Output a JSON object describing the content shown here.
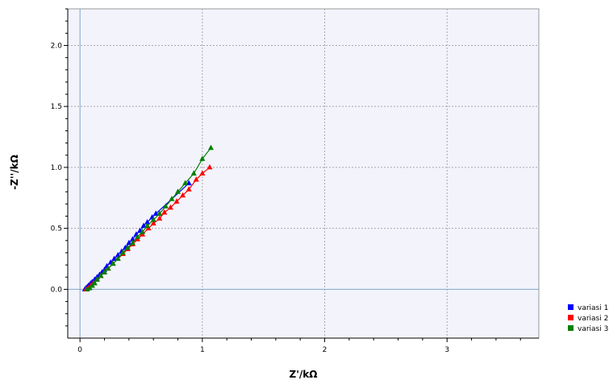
{
  "chart_data": {
    "type": "scatter",
    "title": "",
    "xlabel": "Z'/kΩ",
    "ylabel": "-Z''/kΩ",
    "xlim": [
      -0.1,
      3.75
    ],
    "ylim": [
      -0.4,
      2.3
    ],
    "x_ticks": [
      "0",
      "1",
      "2",
      "3"
    ],
    "x_tick_values": [
      0,
      1,
      2,
      3
    ],
    "y_ticks": [
      "0.0",
      "0.5",
      "1.0",
      "1.5",
      "2.0"
    ],
    "y_tick_values": [
      0.0,
      0.5,
      1.0,
      1.5,
      2.0
    ],
    "grid": true,
    "legend_position": "bottom-right",
    "series": [
      {
        "name": "variasi 1",
        "color": "#0000ff",
        "points": [
          [
            0.04,
            0.0
          ],
          [
            0.05,
            0.01
          ],
          [
            0.06,
            0.02
          ],
          [
            0.07,
            0.03
          ],
          [
            0.08,
            0.04
          ],
          [
            0.09,
            0.05
          ],
          [
            0.1,
            0.06
          ],
          [
            0.12,
            0.08
          ],
          [
            0.14,
            0.1
          ],
          [
            0.16,
            0.12
          ],
          [
            0.18,
            0.14
          ],
          [
            0.2,
            0.16
          ],
          [
            0.22,
            0.19
          ],
          [
            0.25,
            0.22
          ],
          [
            0.28,
            0.25
          ],
          [
            0.31,
            0.28
          ],
          [
            0.34,
            0.31
          ],
          [
            0.37,
            0.34
          ],
          [
            0.4,
            0.38
          ],
          [
            0.43,
            0.41
          ],
          [
            0.46,
            0.45
          ],
          [
            0.49,
            0.48
          ],
          [
            0.52,
            0.52
          ],
          [
            0.55,
            0.55
          ],
          [
            0.59,
            0.59
          ],
          [
            0.62,
            0.62
          ],
          [
            0.89,
            0.87
          ]
        ]
      },
      {
        "name": "variasi 2",
        "color": "#ff0000",
        "points": [
          [
            0.05,
            0.0
          ],
          [
            0.07,
            0.01
          ],
          [
            0.09,
            0.03
          ],
          [
            0.11,
            0.05
          ],
          [
            0.14,
            0.08
          ],
          [
            0.17,
            0.11
          ],
          [
            0.2,
            0.14
          ],
          [
            0.23,
            0.17
          ],
          [
            0.27,
            0.21
          ],
          [
            0.31,
            0.25
          ],
          [
            0.35,
            0.29
          ],
          [
            0.39,
            0.33
          ],
          [
            0.43,
            0.37
          ],
          [
            0.47,
            0.41
          ],
          [
            0.51,
            0.45
          ],
          [
            0.56,
            0.5
          ],
          [
            0.6,
            0.54
          ],
          [
            0.65,
            0.58
          ],
          [
            0.69,
            0.63
          ],
          [
            0.74,
            0.67
          ],
          [
            0.79,
            0.72
          ],
          [
            0.84,
            0.77
          ],
          [
            0.89,
            0.82
          ],
          [
            0.95,
            0.9
          ],
          [
            1.0,
            0.95
          ],
          [
            1.06,
            1.0
          ]
        ]
      },
      {
        "name": "variasi 3",
        "color": "#008000",
        "points": [
          [
            0.06,
            0.0
          ],
          [
            0.08,
            0.01
          ],
          [
            0.1,
            0.03
          ],
          [
            0.12,
            0.05
          ],
          [
            0.14,
            0.08
          ],
          [
            0.17,
            0.11
          ],
          [
            0.2,
            0.14
          ],
          [
            0.23,
            0.17
          ],
          [
            0.27,
            0.21
          ],
          [
            0.31,
            0.25
          ],
          [
            0.35,
            0.3
          ],
          [
            0.39,
            0.34
          ],
          [
            0.43,
            0.38
          ],
          [
            0.47,
            0.43
          ],
          [
            0.51,
            0.47
          ],
          [
            0.55,
            0.52
          ],
          [
            0.6,
            0.57
          ],
          [
            0.65,
            0.62
          ],
          [
            0.7,
            0.68
          ],
          [
            0.75,
            0.74
          ],
          [
            0.8,
            0.8
          ],
          [
            0.86,
            0.87
          ],
          [
            0.93,
            0.95
          ],
          [
            1.0,
            1.07
          ],
          [
            1.07,
            1.16
          ]
        ]
      }
    ]
  }
}
